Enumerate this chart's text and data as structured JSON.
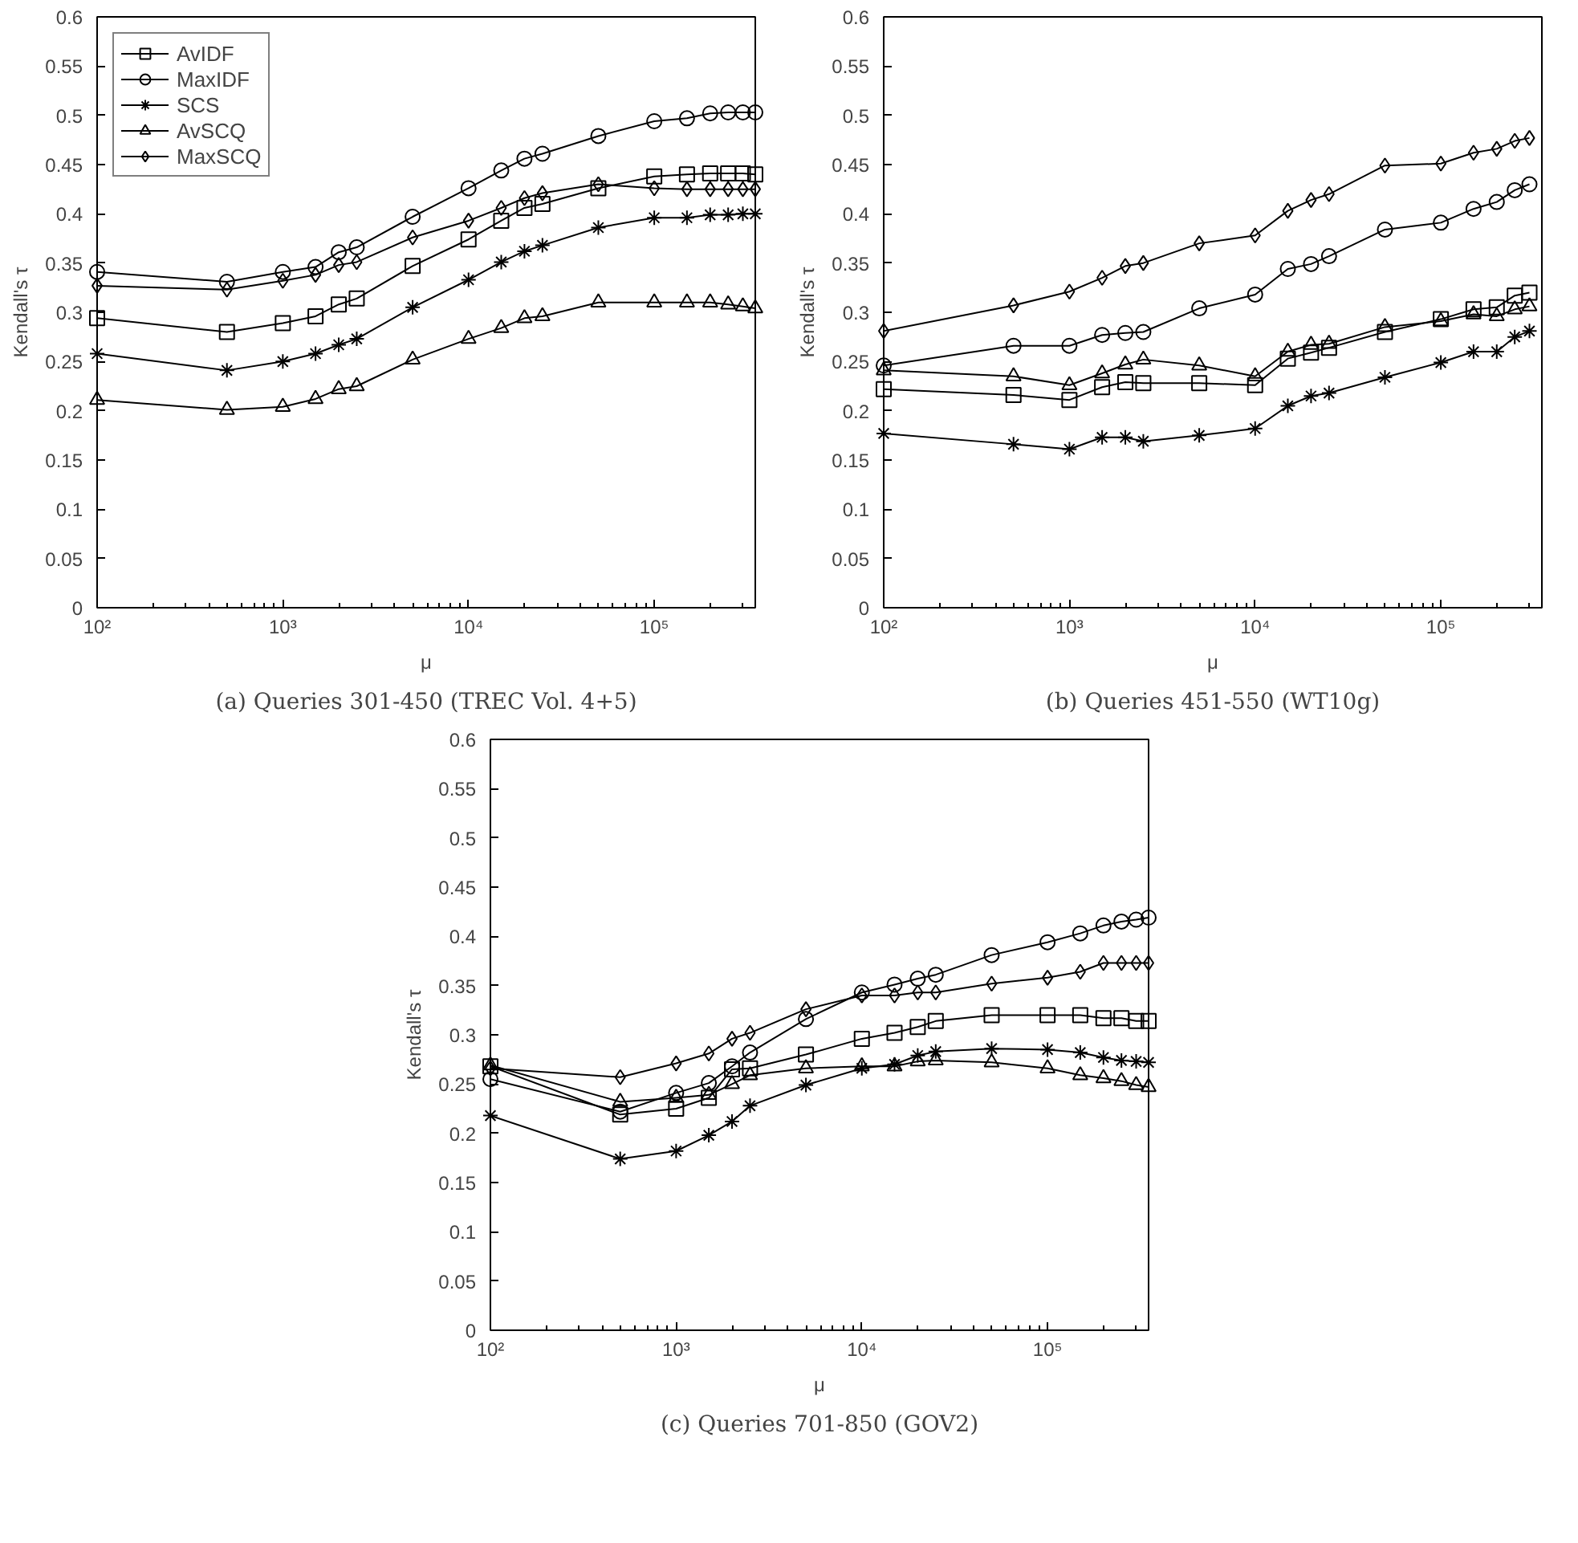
{
  "chart_data": [
    {
      "type": "line",
      "xlabel": "μ",
      "ylabel": "Kendall's τ",
      "annotations": [
        "(a) Queries 301-450 (TREC Vol. 4+5)"
      ],
      "legend": "top left",
      "grid": false,
      "line_style": "solid",
      "log": "x",
      "x": [
        100,
        500,
        1000,
        1500,
        2000,
        2500,
        5000,
        10000,
        15000,
        20000,
        25000,
        50000,
        100000,
        150000,
        200000,
        250000,
        300000,
        350000
      ],
      "xlim": [
        100,
        350000
      ],
      "xticks": [
        {
          "value": 100,
          "label": "10²"
        },
        {
          "value": 1000,
          "label": "10³"
        },
        {
          "value": 10000,
          "label": "10⁴"
        },
        {
          "value": 100000,
          "label": "10⁵"
        }
      ],
      "ylim": [
        0,
        0.6
      ],
      "yticks": [
        0,
        0.05,
        0.1,
        0.15,
        0.2,
        0.25,
        0.3,
        0.35,
        0.4,
        0.45,
        0.5,
        0.55,
        0.6
      ],
      "series": [
        {
          "name": "AvIDF",
          "color": "#000000",
          "marker": "square",
          "values": [
            0.294,
            0.28,
            0.289,
            0.296,
            0.308,
            0.314,
            0.347,
            0.374,
            0.393,
            0.406,
            0.41,
            0.426,
            0.438,
            0.44,
            0.441,
            0.441,
            0.441,
            0.44
          ]
        },
        {
          "name": "MaxIDF",
          "color": "#000000",
          "marker": "circle",
          "values": [
            0.341,
            0.331,
            0.341,
            0.346,
            0.361,
            0.366,
            0.397,
            0.426,
            0.444,
            0.456,
            0.461,
            0.479,
            0.494,
            0.497,
            0.502,
            0.503,
            0.503,
            0.503
          ]
        },
        {
          "name": "SCS",
          "color": "#000000",
          "marker": "cross",
          "values": [
            0.258,
            0.241,
            0.25,
            0.258,
            0.267,
            0.273,
            0.305,
            0.333,
            0.351,
            0.362,
            0.368,
            0.386,
            0.396,
            0.396,
            0.399,
            0.399,
            0.4,
            0.4
          ]
        },
        {
          "name": "AvSCQ",
          "color": "#000000",
          "marker": "triangle",
          "values": [
            0.211,
            0.201,
            0.204,
            0.212,
            0.222,
            0.225,
            0.252,
            0.273,
            0.284,
            0.294,
            0.296,
            0.31,
            0.31,
            0.31,
            0.31,
            0.308,
            0.306,
            0.304
          ]
        },
        {
          "name": "MaxSCQ",
          "color": "#000000",
          "marker": "diamond",
          "values": [
            0.327,
            0.323,
            0.332,
            0.338,
            0.348,
            0.351,
            0.376,
            0.393,
            0.406,
            0.416,
            0.421,
            0.43,
            0.426,
            0.425,
            0.425,
            0.425,
            0.425,
            0.425
          ]
        }
      ]
    },
    {
      "type": "line",
      "xlabel": "μ",
      "ylabel": "Kendall's τ",
      "annotations": [
        "(b) Queries 451-550 (WT10g)"
      ],
      "grid": false,
      "line_style": "solid",
      "log": "x",
      "x": [
        100,
        500,
        1000,
        1500,
        2000,
        2500,
        5000,
        10000,
        15000,
        20000,
        25000,
        50000,
        100000,
        150000,
        200000,
        250000,
        300000
      ],
      "xlim": [
        100,
        350000
      ],
      "xticks": [
        {
          "value": 100,
          "label": "10²"
        },
        {
          "value": 1000,
          "label": "10³"
        },
        {
          "value": 10000,
          "label": "10⁴"
        },
        {
          "value": 100000,
          "label": "10⁵"
        }
      ],
      "ylim": [
        0,
        0.6
      ],
      "yticks": [
        0,
        0.05,
        0.1,
        0.15,
        0.2,
        0.25,
        0.3,
        0.35,
        0.4,
        0.45,
        0.5,
        0.55,
        0.6
      ],
      "series": [
        {
          "color": "#000000",
          "marker": "square",
          "values": [
            0.222,
            0.216,
            0.211,
            0.224,
            0.229,
            0.228,
            0.228,
            0.226,
            0.253,
            0.259,
            0.264,
            0.28,
            0.293,
            0.303,
            0.305,
            0.317,
            0.32
          ]
        },
        {
          "color": "#000000",
          "marker": "circle",
          "values": [
            0.246,
            0.266,
            0.266,
            0.277,
            0.279,
            0.28,
            0.304,
            0.318,
            0.344,
            0.349,
            0.357,
            0.384,
            0.391,
            0.405,
            0.412,
            0.424,
            0.43
          ]
        },
        {
          "color": "#000000",
          "marker": "cross",
          "values": [
            0.177,
            0.166,
            0.161,
            0.173,
            0.173,
            0.169,
            0.175,
            0.182,
            0.205,
            0.215,
            0.218,
            0.234,
            0.249,
            0.26,
            0.26,
            0.275,
            0.281
          ]
        },
        {
          "color": "#000000",
          "marker": "triangle",
          "values": [
            0.241,
            0.235,
            0.226,
            0.238,
            0.247,
            0.252,
            0.246,
            0.235,
            0.26,
            0.267,
            0.268,
            0.285,
            0.291,
            0.298,
            0.296,
            0.303,
            0.306
          ]
        },
        {
          "color": "#000000",
          "marker": "diamond",
          "values": [
            0.281,
            0.307,
            0.321,
            0.335,
            0.347,
            0.35,
            0.37,
            0.378,
            0.403,
            0.414,
            0.42,
            0.449,
            0.451,
            0.462,
            0.466,
            0.474,
            0.477
          ]
        }
      ]
    },
    {
      "type": "line",
      "xlabel": "μ",
      "ylabel": "Kendall's τ",
      "annotations": [
        "(c) Queries 701-850 (GOV2)"
      ],
      "grid": false,
      "line_style": "solid",
      "log": "x",
      "x": [
        100,
        500,
        1000,
        1500,
        2000,
        2500,
        5000,
        10000,
        15000,
        20000,
        25000,
        50000,
        100000,
        150000,
        200000,
        250000,
        300000,
        350000
      ],
      "xlim": [
        100,
        350000
      ],
      "xticks": [
        {
          "value": 100,
          "label": "10²"
        },
        {
          "value": 1000,
          "label": "10³"
        },
        {
          "value": 10000,
          "label": "10⁴"
        },
        {
          "value": 100000,
          "label": "10⁵"
        }
      ],
      "ylim": [
        0,
        0.6
      ],
      "yticks": [
        0,
        0.05,
        0.1,
        0.15,
        0.2,
        0.25,
        0.3,
        0.35,
        0.4,
        0.45,
        0.5,
        0.55,
        0.6
      ],
      "series": [
        {
          "color": "#000000",
          "marker": "square",
          "values": [
            0.268,
            0.219,
            0.225,
            0.236,
            0.265,
            0.266,
            0.28,
            0.296,
            0.302,
            0.308,
            0.314,
            0.32,
            0.32,
            0.32,
            0.317,
            0.317,
            0.314,
            0.314
          ]
        },
        {
          "color": "#000000",
          "marker": "circle",
          "values": [
            0.255,
            0.222,
            0.241,
            0.251,
            0.268,
            0.282,
            0.316,
            0.343,
            0.351,
            0.357,
            0.361,
            0.381,
            0.394,
            0.403,
            0.411,
            0.415,
            0.417,
            0.419
          ]
        },
        {
          "color": "#000000",
          "marker": "cross",
          "values": [
            0.218,
            0.174,
            0.182,
            0.198,
            0.212,
            0.228,
            0.249,
            0.266,
            0.27,
            0.279,
            0.283,
            0.286,
            0.285,
            0.282,
            0.277,
            0.274,
            0.273,
            0.272
          ]
        },
        {
          "color": "#000000",
          "marker": "triangle",
          "values": [
            0.269,
            0.232,
            0.236,
            0.239,
            0.25,
            0.259,
            0.266,
            0.268,
            0.268,
            0.273,
            0.274,
            0.272,
            0.266,
            0.259,
            0.256,
            0.253,
            0.249,
            0.247
          ]
        },
        {
          "color": "#000000",
          "marker": "diamond",
          "values": [
            0.266,
            0.257,
            0.271,
            0.281,
            0.296,
            0.302,
            0.326,
            0.34,
            0.34,
            0.343,
            0.343,
            0.352,
            0.358,
            0.364,
            0.373,
            0.373,
            0.373,
            0.373
          ]
        }
      ]
    }
  ]
}
